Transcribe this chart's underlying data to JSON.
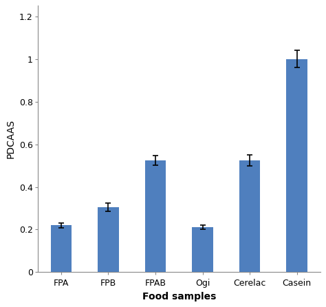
{
  "categories": [
    "FPA",
    "FPB",
    "FPAB",
    "Ogi",
    "Cerelac",
    "Casein"
  ],
  "values": [
    0.22,
    0.305,
    0.525,
    0.21,
    0.525,
    1.0
  ],
  "errors": [
    0.012,
    0.018,
    0.022,
    0.01,
    0.025,
    0.04
  ],
  "bar_color": "#4F7FBE",
  "xlabel": "Food samples",
  "ylabel": "PDCAAS",
  "ylim": [
    0,
    1.25
  ],
  "yticks": [
    0,
    0.2,
    0.4,
    0.6,
    0.8,
    1.0,
    1.2
  ],
  "ytick_labels": [
    "0",
    "0.2",
    "0.4",
    "0.6",
    "0.8",
    "1",
    "1.2"
  ],
  "title": "",
  "xlabel_fontsize": 10,
  "ylabel_fontsize": 10,
  "tick_fontsize": 9,
  "bar_width": 0.45,
  "capsize": 3,
  "error_color": "black",
  "error_linewidth": 1.2,
  "spine_color": "#888888",
  "background_color": "#ffffff"
}
